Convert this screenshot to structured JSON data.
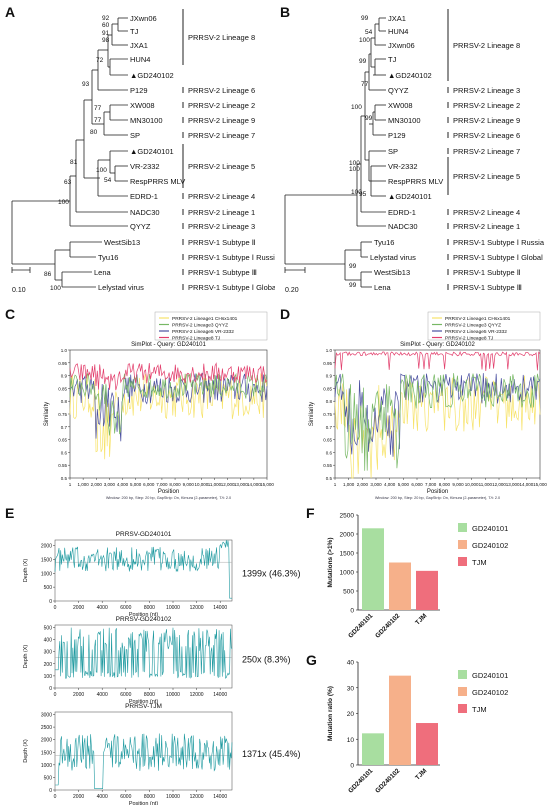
{
  "panel_letters": [
    "A",
    "B",
    "C",
    "D",
    "E",
    "F",
    "G"
  ],
  "tree_a": {
    "taxa": [
      "JXwn06",
      "TJ",
      "JXA1",
      "HUN4",
      "▲GD240102",
      "P129",
      "XW008",
      "MN30100",
      "SP",
      "▲GD240101",
      "VR-2332",
      "RespPRRS MLV",
      "EDRD-1",
      "NADC30",
      "QYYZ",
      "WestSib13",
      "Tyu16",
      "Lena",
      "Lelystad virus"
    ],
    "groups": [
      "PRRSV-2 Lineage 8",
      "PRRSV-2 Lineage 6",
      "PRRSV-2 Lineage 2",
      "PRRSV-2 Lineage 9",
      "PRRSV-2 Lineage 7",
      "PRRSV-2 Lineage 5",
      "PRRSV-2 Lineage 4",
      "PRRSV-2 Lineage 1",
      "PRRSV-2 Lineage 3",
      "PRRSV-1 Subtype Ⅱ",
      "PRRSV-1 Subtype Ⅰ Russia",
      "PRRSV-1 Subtype Ⅲ",
      "PRRSV-1 Subtype Ⅰ Global"
    ],
    "support": [
      "92",
      "60",
      "91",
      "98",
      "72",
      "93",
      "77",
      "77",
      "80",
      "81",
      "100",
      "54",
      "63",
      "100",
      "86",
      "100"
    ],
    "scale": "0.10"
  },
  "tree_b": {
    "taxa": [
      "JXA1",
      "HUN4",
      "JXwn06",
      "TJ",
      "▲GD240102",
      "QYYZ",
      "XW008",
      "MN30100",
      "P129",
      "SP",
      "VR-2332",
      "RespPRRS MLV",
      "▲GD240101",
      "EDRD-1",
      "NADC30",
      "Tyu16",
      "Lelystad virus",
      "WestSib13",
      "Lena"
    ],
    "groups": [
      "PRRSV-2 Lineage 8",
      "PRRSV-2 Lineage 3",
      "PRRSV-2 Lineage 2",
      "PRRSV-2 Lineage 9",
      "PRRSV-2 Lineage 6",
      "PRRSV-2 Lineage 7",
      "PRRSV-2 Lineage 5",
      "PRRSV-2 Lineage 4",
      "PRRSV-2 Lineage 1",
      "PRRSV-1 Subtype Ⅰ Russia",
      "PRRSV-1 Subtype Ⅰ Global",
      "PRRSV-1 Subtype Ⅱ",
      "PRRSV-1 Subtype Ⅲ"
    ],
    "support": [
      "99",
      "54",
      "100",
      "99",
      "77",
      "100",
      "99",
      "100",
      "100",
      "100",
      "95",
      "99",
      "99"
    ],
    "scale": "0.20"
  },
  "simplot_c": {
    "title": "SimPlot - Query: GD240101",
    "legend": [
      "PRRSV-2 Lineage1 CHsx1401",
      "PRRSV-2 Lineage3 QYYZ",
      "PRRSV-2 Lineage5 VR-2332",
      "PRRSV-2 Lineage8 TJ"
    ],
    "ylabel": "Similarity",
    "xlabel": "Position",
    "yticks": [
      "1.0",
      "0.95",
      "0.9",
      "0.85",
      "0.8",
      "0.75",
      "0.7",
      "0.65",
      "0.6",
      "0.55",
      "0.5"
    ],
    "xticks": [
      "1",
      "1,000",
      "2,000",
      "3,000",
      "4,000",
      "5,000",
      "6,000",
      "7,000",
      "8,000",
      "9,000",
      "10,000",
      "11,000",
      "12,000",
      "13,000",
      "14,000",
      "15,000"
    ],
    "footer": "Window: 200 bp, Step: 20 bp, GapStrip: On, Kimura (2-parameter), T/t: 2.0"
  },
  "simplot_d": {
    "title": "SimPlot - Query: GD240102",
    "legend": [
      "PRRSV-2 Lineage1 CHsx1401",
      "PRRSV-2 Lineage3 QYYZ",
      "PRRSV-2 Lineage5 VR-2332",
      "PRRSV-2 Lineage8 TJ"
    ],
    "ylabel": "Similarity",
    "xlabel": "Position",
    "yticks": [
      "1.0",
      "0.95",
      "0.9",
      "0.85",
      "0.8",
      "0.75",
      "0.7",
      "0.65",
      "0.6",
      "0.55",
      "0.5"
    ],
    "xticks": [
      "1",
      "1,000",
      "2,000",
      "3,000",
      "4,000",
      "5,000",
      "6,000",
      "7,000",
      "8,000",
      "9,000",
      "10,000",
      "11,000",
      "12,000",
      "13,000",
      "14,000",
      "15,000"
    ],
    "footer": "Window: 200 bp, Step: 20 bp, GapStrip: On, Kimura (2-parameter), T/t: 2.0"
  },
  "depth_plots": [
    {
      "title": "PRRSV-GD240101",
      "ylabel": "Depth (X)",
      "xlabel": "Position (nt)",
      "yticks": [
        "0",
        "500",
        "1000",
        "1500",
        "2000"
      ],
      "ymax": 2200,
      "xticks": [
        "0",
        "2000",
        "4000",
        "6000",
        "8000",
        "10000",
        "12000",
        "14000"
      ],
      "annotation": "1399x (46.3%)",
      "mean": 1399
    },
    {
      "title": "PRRSV-GD240102",
      "ylabel": "Depth (X)",
      "xlabel": "Position (nt)",
      "yticks": [
        "0",
        "100",
        "200",
        "300",
        "400",
        "500"
      ],
      "ymax": 520,
      "xticks": [
        "0",
        "2000",
        "4000",
        "6000",
        "8000",
        "10000",
        "12000",
        "14000"
      ],
      "annotation": "250x (8.3%)",
      "mean": 250
    },
    {
      "title": "PRRSV-TJM",
      "ylabel": "Depth (X)",
      "xlabel": "Position (nt)",
      "yticks": [
        "0",
        "500",
        "1000",
        "1500",
        "2000",
        "2500",
        "3000"
      ],
      "ymax": 3100,
      "xticks": [
        "0",
        "2000",
        "4000",
        "6000",
        "8000",
        "10000",
        "12000",
        "14000"
      ],
      "annotation": "1371x (45.4%)",
      "mean": 1371
    }
  ],
  "chart_data": [
    {
      "type": "bar",
      "panel": "F",
      "categories": [
        "GD240101",
        "GD240102",
        "TJM"
      ],
      "values": [
        2150,
        1250,
        1030
      ],
      "ylabel": "Mutations (>1%)",
      "ylim": [
        0,
        2500
      ],
      "yticks": [
        "0",
        "500",
        "1000",
        "1500",
        "2000",
        "2500"
      ],
      "legend": [
        "GD240101",
        "GD240102",
        "TJM"
      ],
      "colors": [
        "#a8dea0",
        "#f6b08a",
        "#ef6e7c"
      ]
    },
    {
      "type": "bar",
      "panel": "G",
      "categories": [
        "GD240101",
        "GD240102",
        "TJM"
      ],
      "values": [
        12.3,
        34.7,
        16.3
      ],
      "ylabel": "Mutation ratio (%)",
      "ylim": [
        0,
        40
      ],
      "yticks": [
        "0",
        "10",
        "20",
        "30",
        "40"
      ],
      "legend": [
        "GD240101",
        "GD240102",
        "TJM"
      ],
      "colors": [
        "#a8dea0",
        "#f6b08a",
        "#ef6e7c"
      ]
    }
  ]
}
